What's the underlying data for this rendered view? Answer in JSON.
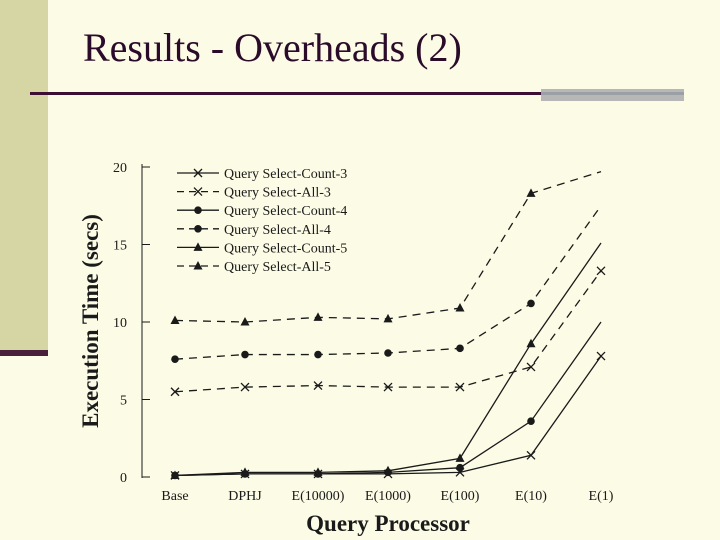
{
  "slide": {
    "title": "Results - Overheads (2)",
    "colors": {
      "background": "#fcfbe6",
      "left_bar": "#d6d5a4",
      "title_text": "#2b0b2a",
      "rule": "#3d0f33",
      "rule_accent": "#b8b7b8"
    }
  },
  "chart_data": {
    "type": "line",
    "title": "",
    "xlabel": "Query Processor",
    "ylabel": "Execution Time (secs)",
    "ylim": [
      0,
      20
    ],
    "yticks": [
      0,
      5,
      10,
      15,
      20
    ],
    "categories": [
      "Base",
      "DPHJ",
      "E(10000)",
      "E(1000)",
      "E(100)",
      "E(10)",
      "E(1)"
    ],
    "legend_position": "top-left",
    "grid": false,
    "series": [
      {
        "name": "Query Select-Count-3",
        "marker": "x",
        "dash": "solid",
        "values": [
          0.1,
          0.2,
          0.2,
          0.2,
          0.3,
          1.4,
          7.8
        ]
      },
      {
        "name": "Query Select-All-3",
        "marker": "x",
        "dash": "dashed",
        "values": [
          5.5,
          5.8,
          5.9,
          5.8,
          5.8,
          7.1,
          13.3
        ]
      },
      {
        "name": "Query Select-Count-4",
        "marker": "circle",
        "dash": "solid",
        "values": [
          0.1,
          0.2,
          0.2,
          0.3,
          0.6,
          3.6,
          10.0
        ],
        "last_point_marker": false
      },
      {
        "name": "Query Select-All-4",
        "marker": "circle",
        "dash": "dashed",
        "values": [
          7.6,
          7.9,
          7.9,
          8.0,
          8.3,
          11.2,
          17.5
        ],
        "last_point_marker": false
      },
      {
        "name": "Query Select-Count-5",
        "marker": "triangle",
        "dash": "solid",
        "values": [
          0.1,
          0.3,
          0.3,
          0.4,
          1.2,
          8.6,
          15.1
        ],
        "last_point_marker": false
      },
      {
        "name": "Query Select-All-5",
        "marker": "triangle",
        "dash": "dashed",
        "values": [
          10.1,
          10.0,
          10.3,
          10.2,
          10.9,
          18.3,
          19.7
        ],
        "last_point_marker": false
      }
    ],
    "colors": {
      "line": "#1a1a1a",
      "text": "#1a1a1a"
    }
  }
}
